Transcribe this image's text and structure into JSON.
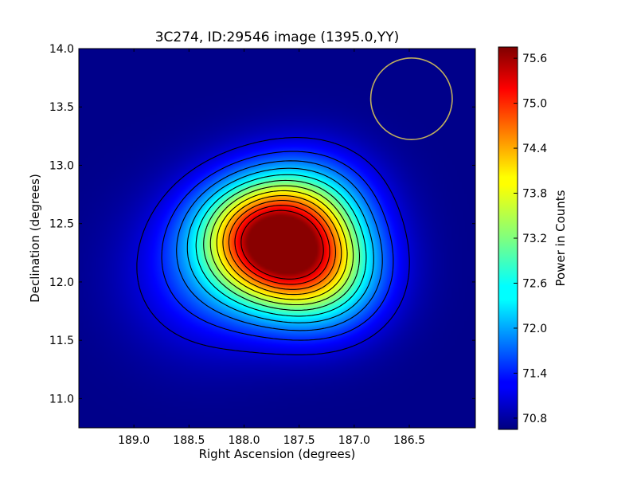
{
  "chart_data": {
    "type": "heatmap",
    "title": "3C274, ID:29546 image (1395.0,YY)",
    "xlabel": "Right Ascension (degrees)",
    "ylabel": "Declination (degrees)",
    "colorbar_label": "Power in Counts",
    "xlim": [
      189.5,
      185.9
    ],
    "ylim": [
      10.75,
      14.0
    ],
    "x_ticks": [
      189.0,
      188.5,
      188.0,
      187.5,
      187.0,
      186.5
    ],
    "x_tick_labels": [
      "189.0",
      "188.5",
      "188.0",
      "187.5",
      "187.0",
      "186.5"
    ],
    "y_ticks": [
      11.0,
      11.5,
      12.0,
      12.5,
      13.0,
      13.5,
      14.0
    ],
    "y_tick_labels": [
      "11.0",
      "11.5",
      "12.0",
      "12.5",
      "13.0",
      "13.5",
      "14.0"
    ],
    "colorbar_range": [
      70.65,
      75.75
    ],
    "colorbar_ticks": [
      70.8,
      71.4,
      72.0,
      72.6,
      73.2,
      73.8,
      74.4,
      75.0,
      75.6
    ],
    "colorbar_tick_labels": [
      "70.8",
      "71.4",
      "72.0",
      "72.6",
      "73.2",
      "73.8",
      "74.4",
      "75.0",
      "75.6"
    ],
    "colormap": "jet",
    "peak": {
      "ra": 187.55,
      "dec": 12.25,
      "value": 75.7
    },
    "contours": "on",
    "beam_circle": {
      "ra": 186.48,
      "dec": 13.57,
      "radius_deg": 0.37,
      "color": "#bfae5e"
    }
  }
}
